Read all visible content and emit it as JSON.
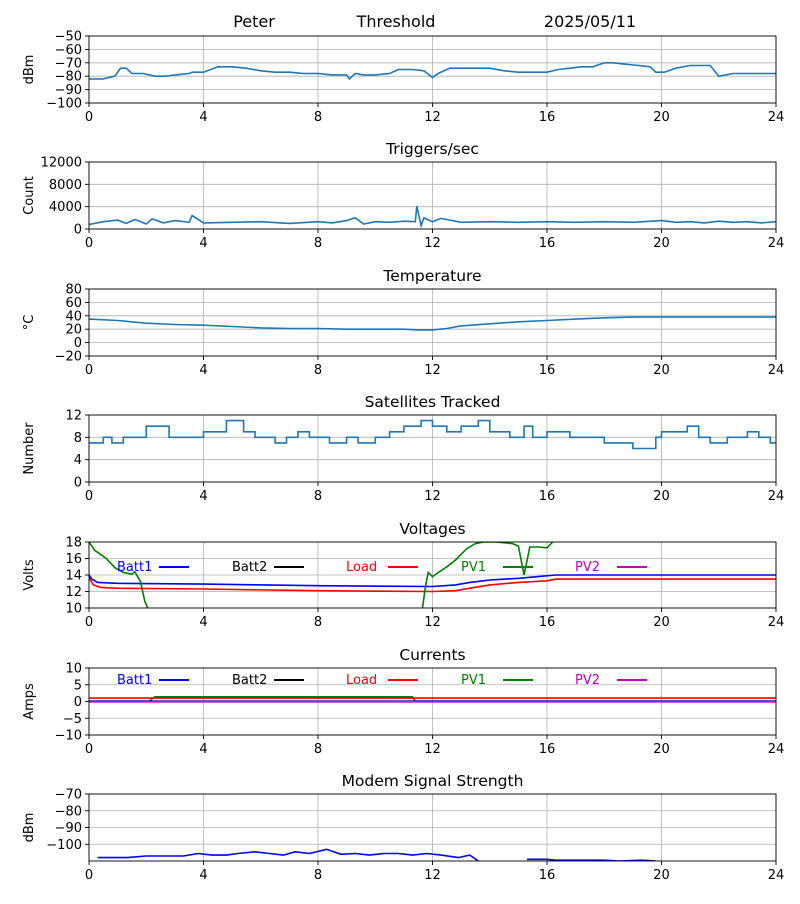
{
  "header": {
    "station": "Peter",
    "mode": "Threshold",
    "date": "2025/05/11"
  },
  "colors": {
    "default": "#1f77b4",
    "batt1": "#0000ff",
    "batt2": "#000000",
    "load": "#ff0000",
    "pv1": "#008000",
    "pv2": "#bf00bf",
    "grid": "#b0b0b0"
  },
  "chart_data": [
    {
      "id": "threshold",
      "type": "line",
      "title": "",
      "xlabel": "",
      "ylabel": "dBm",
      "xlim": [
        0,
        24
      ],
      "ylim": [
        -100,
        -50
      ],
      "xticks": [
        0,
        4,
        8,
        12,
        16,
        20,
        24
      ],
      "yticks": [
        -100,
        -90,
        -80,
        -70,
        -60,
        -50
      ],
      "ytick_labels": [
        "−100",
        "−90",
        "−80",
        "−70",
        "−60",
        "−50"
      ],
      "grid": true,
      "series": [
        {
          "color": "default",
          "x": [
            0,
            0.5,
            0.9,
            1.1,
            1.3,
            1.5,
            1.9,
            2.3,
            2.7,
            3.0,
            3.5,
            3.6,
            4.0,
            4.5,
            5.0,
            5.5,
            6.0,
            6.5,
            7.0,
            7.5,
            8.0,
            8.5,
            9.0,
            9.1,
            9.3,
            9.6,
            10.0,
            10.5,
            10.8,
            11.3,
            11.7,
            12.0,
            12.2,
            12.6,
            13.0,
            13.5,
            14.0,
            14.5,
            15.0,
            15.5,
            16.0,
            16.4,
            16.8,
            17.2,
            17.6,
            18.0,
            18.3,
            18.7,
            19.2,
            19.6,
            19.8,
            20.1,
            20.5,
            21.0,
            21.5,
            21.7,
            22.0,
            22.5,
            23.0,
            23.5,
            24.0
          ],
          "y": [
            -82,
            -82,
            -80,
            -74,
            -74,
            -78,
            -78,
            -80,
            -80,
            -79,
            -78,
            -77,
            -77,
            -73,
            -73,
            -74,
            -76,
            -77,
            -77,
            -78,
            -78,
            -79,
            -79,
            -82,
            -78,
            -79,
            -79,
            -78,
            -75,
            -75,
            -76,
            -81,
            -78,
            -74,
            -74,
            -74,
            -74,
            -76,
            -77,
            -77,
            -77,
            -75,
            -74,
            -73,
            -73,
            -70,
            -70,
            -71,
            -72,
            -73,
            -77,
            -77,
            -74,
            -72,
            -72,
            -72,
            -80,
            -78,
            -78,
            -78,
            -78
          ]
        }
      ]
    },
    {
      "id": "triggers",
      "type": "line",
      "title": "Triggers/sec",
      "xlabel": "",
      "ylabel": "Count",
      "xlim": [
        0,
        24
      ],
      "ylim": [
        0,
        12000
      ],
      "xticks": [
        0,
        4,
        8,
        12,
        16,
        20,
        24
      ],
      "yticks": [
        0,
        4000,
        8000,
        12000
      ],
      "ytick_labels": [
        "0",
        "4000",
        "8000",
        "12000"
      ],
      "grid": true,
      "series": [
        {
          "color": "default",
          "x": [
            0,
            0.5,
            1.0,
            1.3,
            1.6,
            2.0,
            2.2,
            2.6,
            3.0,
            3.5,
            3.6,
            4.0,
            5.0,
            6.0,
            7.0,
            8.0,
            8.5,
            9.0,
            9.3,
            9.6,
            10.0,
            10.5,
            11.0,
            11.4,
            11.45,
            11.6,
            11.7,
            12.0,
            12.3,
            13.0,
            14.0,
            15.0,
            16.0,
            17.0,
            18.0,
            19.0,
            20.0,
            20.5,
            21.0,
            21.5,
            22.0,
            22.5,
            23.0,
            23.5,
            24.0
          ],
          "y": [
            800,
            1300,
            1600,
            1000,
            1700,
            900,
            1800,
            1100,
            1500,
            1200,
            2400,
            1100,
            1200,
            1300,
            1000,
            1300,
            1100,
            1500,
            2000,
            900,
            1300,
            1200,
            1400,
            1300,
            4100,
            600,
            2000,
            1300,
            1900,
            1200,
            1300,
            1200,
            1300,
            1200,
            1300,
            1200,
            1500,
            1200,
            1300,
            1100,
            1400,
            1200,
            1300,
            1100,
            1300
          ]
        }
      ]
    },
    {
      "id": "temperature",
      "type": "line",
      "title": "Temperature",
      "xlabel": "",
      "ylabel": "°C",
      "xlim": [
        0,
        24
      ],
      "ylim": [
        -20,
        80
      ],
      "xticks": [
        0,
        4,
        8,
        12,
        16,
        20,
        24
      ],
      "yticks": [
        -20,
        0,
        20,
        40,
        60,
        80
      ],
      "ytick_labels": [
        "−20",
        "0",
        "20",
        "40",
        "60",
        "80"
      ],
      "grid": true,
      "series": [
        {
          "color": "default",
          "x": [
            0,
            1,
            2,
            3,
            4,
            5,
            6,
            7,
            8,
            9,
            10,
            11,
            11.5,
            12,
            12.5,
            13,
            14,
            15,
            16,
            17,
            18,
            19,
            20,
            21,
            22,
            23,
            24
          ],
          "y": [
            35,
            33,
            29,
            27,
            26,
            24,
            22,
            21,
            21,
            20,
            20,
            20,
            19,
            19,
            21,
            25,
            28,
            31,
            33,
            35,
            37,
            38,
            38,
            38,
            38,
            38,
            38
          ]
        }
      ]
    },
    {
      "id": "satellites",
      "type": "line",
      "title": "Satellites Tracked",
      "xlabel": "",
      "ylabel": "Number",
      "xlim": [
        0,
        24
      ],
      "ylim": [
        0,
        12
      ],
      "xticks": [
        0,
        4,
        8,
        12,
        16,
        20,
        24
      ],
      "yticks": [
        0,
        4,
        8,
        12
      ],
      "ytick_labels": [
        "0",
        "4",
        "8",
        "12"
      ],
      "grid": true,
      "series": [
        {
          "color": "default",
          "step": true,
          "x": [
            0,
            0.5,
            0.8,
            1.2,
            2.0,
            2.8,
            3.5,
            4.0,
            4.8,
            5.4,
            5.8,
            6.5,
            6.9,
            7.3,
            7.7,
            8.1,
            8.4,
            9.0,
            9.4,
            10.0,
            10.5,
            11.0,
            11.6,
            12.0,
            12.5,
            13.0,
            13.6,
            14.0,
            14.7,
            15.2,
            15.5,
            16.0,
            16.8,
            17.5,
            18.0,
            18.6,
            19.0,
            19.8,
            20.0,
            20.9,
            21.3,
            21.7,
            22.3,
            22.6,
            23.0,
            23.4,
            23.8
          ],
          "y": [
            7,
            8,
            7,
            8,
            10,
            8,
            8,
            9,
            11,
            9,
            8,
            7,
            8,
            9,
            8,
            8,
            7,
            8,
            7,
            8,
            9,
            10,
            11,
            10,
            9,
            10,
            11,
            9,
            8,
            10,
            8,
            9,
            8,
            8,
            7,
            7,
            6,
            8,
            9,
            10,
            8,
            7,
            8,
            8,
            9,
            8,
            7
          ]
        }
      ]
    },
    {
      "id": "voltages",
      "type": "line",
      "title": "Voltages",
      "xlabel": "",
      "ylabel": "Volts",
      "xlim": [
        0,
        24
      ],
      "ylim": [
        10,
        18
      ],
      "xticks": [
        0,
        4,
        8,
        12,
        16,
        20,
        24
      ],
      "yticks": [
        10,
        12,
        14,
        16,
        18
      ],
      "ytick_labels": [
        "10",
        "12",
        "14",
        "16",
        "18"
      ],
      "grid": true,
      "legend": [
        "Batt1",
        "Batt2",
        "Load",
        "PV1",
        "PV2"
      ],
      "series": [
        {
          "name": "Batt1",
          "color": "batt1",
          "x": [
            0,
            0.1,
            0.3,
            1,
            4,
            8,
            12,
            12.8,
            13.3,
            14,
            15,
            15.7,
            16.3,
            17,
            20,
            24
          ],
          "y": [
            14,
            13.5,
            13.1,
            13,
            12.9,
            12.7,
            12.6,
            12.8,
            13.1,
            13.4,
            13.6,
            13.8,
            14,
            14,
            14,
            14
          ]
        },
        {
          "name": "Load",
          "color": "load",
          "x": [
            0,
            0.15,
            0.4,
            1,
            4,
            8,
            12,
            12.8,
            13.3,
            14,
            15,
            16,
            16.3,
            17,
            20,
            24
          ],
          "y": [
            13.7,
            12.8,
            12.5,
            12.4,
            12.3,
            12.1,
            12,
            12.1,
            12.4,
            12.8,
            13.1,
            13.3,
            13.5,
            13.5,
            13.5,
            13.5
          ]
        },
        {
          "name": "PV1",
          "color": "pv1",
          "segments": [
            {
              "x": [
                0,
                0.2,
                0.6,
                0.9,
                1.2,
                1.5,
                1.6,
                1.8,
                1.95,
                2.05
              ],
              "y": [
                18,
                17,
                16,
                14.9,
                14.3,
                14.1,
                14.4,
                13.2,
                10.8,
                10
              ]
            },
            {
              "x": [
                11.65,
                11.75,
                11.85,
                12.0,
                12.2,
                12.5,
                12.8,
                13.2,
                13.5,
                13.8,
                14.2,
                14.8,
                15.0,
                15.2,
                15.4,
                15.7,
                16.0,
                16.2
              ],
              "y": [
                10,
                12.5,
                14.3,
                13.8,
                14.3,
                15,
                15.8,
                17.2,
                17.8,
                18,
                18,
                17.8,
                17.5,
                14,
                17.4,
                17.4,
                17.3,
                18
              ]
            }
          ]
        }
      ]
    },
    {
      "id": "currents",
      "type": "line",
      "title": "Currents",
      "xlabel": "",
      "ylabel": "Amps",
      "xlim": [
        0,
        24
      ],
      "ylim": [
        -10,
        10
      ],
      "xticks": [
        0,
        4,
        8,
        12,
        16,
        20,
        24
      ],
      "yticks": [
        -10,
        -5,
        0,
        5,
        10
      ],
      "ytick_labels": [
        "−10",
        "−5",
        "0",
        "5",
        "10"
      ],
      "grid": true,
      "legend": [
        "Batt1",
        "Batt2",
        "Load",
        "PV1",
        "PV2"
      ],
      "series": [
        {
          "name": "PV1",
          "color": "pv1",
          "x": [
            0,
            2.1,
            2.3,
            11.3,
            11.4,
            24
          ],
          "y": [
            0.1,
            0.1,
            1.4,
            1.4,
            0.1,
            0.1
          ]
        },
        {
          "name": "Load",
          "color": "load",
          "x": [
            0,
            12,
            24
          ],
          "y": [
            1,
            1,
            1
          ]
        },
        {
          "name": "Batt1",
          "color": "batt1",
          "x": [
            0,
            24
          ],
          "y": [
            0.1,
            0.1
          ]
        },
        {
          "name": "PV2",
          "color": "pv2",
          "x": [
            0,
            24
          ],
          "y": [
            -0.1,
            -0.1
          ]
        }
      ]
    },
    {
      "id": "modem",
      "type": "line",
      "title": "Modem Signal Strength",
      "xlabel": "",
      "ylabel": "dBm",
      "xlim": [
        0,
        24
      ],
      "ylim": [
        -110,
        -70
      ],
      "xticks": [
        0,
        4,
        8,
        12,
        16,
        20,
        24
      ],
      "yticks": [
        -100,
        -90,
        -80,
        -70
      ],
      "ytick_labels": [
        "−100",
        "−90",
        "−80",
        "−70"
      ],
      "grid": true,
      "series": [
        {
          "name": "",
          "color": "batt1",
          "segments": [
            {
              "x": [
                0.3,
                1.3,
                2.0,
                3.3,
                3.8,
                4.3,
                4.8,
                5.2,
                5.8,
                6.3,
                6.8,
                7.2,
                7.7,
                8.3,
                8.8,
                9.3,
                9.8,
                10.3,
                10.8,
                11.3,
                11.8,
                12.3,
                12.9,
                13.3,
                13.6
              ],
              "y": [
                -108,
                -108,
                -107,
                -107,
                -105.5,
                -106.5,
                -106.5,
                -105.5,
                -104.5,
                -105.5,
                -106.5,
                -104.5,
                -105.5,
                -103,
                -106,
                -105.5,
                -106.5,
                -105.5,
                -105.5,
                -106.5,
                -105.5,
                -106.5,
                -108,
                -106.5,
                -110
              ]
            },
            {
              "x": [
                15.3,
                16.0,
                16.3,
                18.0,
                18.5,
                19.3,
                19.8
              ],
              "y": [
                -109,
                -109,
                -109.5,
                -109.5,
                -110,
                -109.5,
                -110
              ]
            }
          ]
        }
      ]
    }
  ]
}
